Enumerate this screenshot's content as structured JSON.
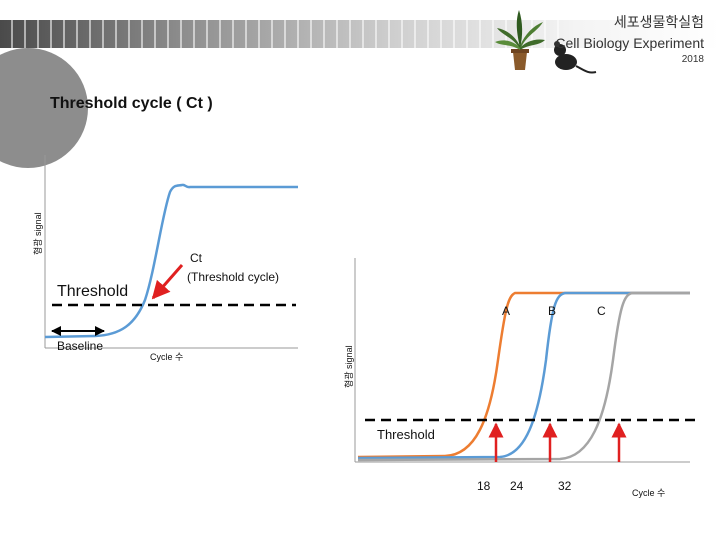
{
  "header": {
    "title_korean": "세포생물학실험",
    "title_english": "Cell Biology Experiment",
    "year": "2018"
  },
  "slide": {
    "title": "Threshold cycle ( Ct )"
  },
  "left_diagram": {
    "ylabel": "형광 signal",
    "xlabel": "Cycle 수",
    "threshold_label": "Threshold",
    "baseline_label": "Baseline",
    "ct_label_line1": "Ct",
    "ct_label_line2": "(Threshold cycle)",
    "curve_color": "#5b9bd5",
    "arrow_color": "#e02020"
  },
  "right_diagram": {
    "ylabel": "형광 signal",
    "xlabel": "Cycle 수",
    "threshold_label": "Threshold",
    "curve_labels": [
      "A",
      "B",
      "C"
    ],
    "x_ticks": [
      "18",
      "24",
      "32"
    ],
    "curve_colors": [
      "#ed7d31",
      "#5b9bd5",
      "#a5a5a5"
    ],
    "arrow_color": "#e02020"
  },
  "icons": {
    "plant": "potted-plant-icon",
    "mouse": "mouse-icon"
  }
}
